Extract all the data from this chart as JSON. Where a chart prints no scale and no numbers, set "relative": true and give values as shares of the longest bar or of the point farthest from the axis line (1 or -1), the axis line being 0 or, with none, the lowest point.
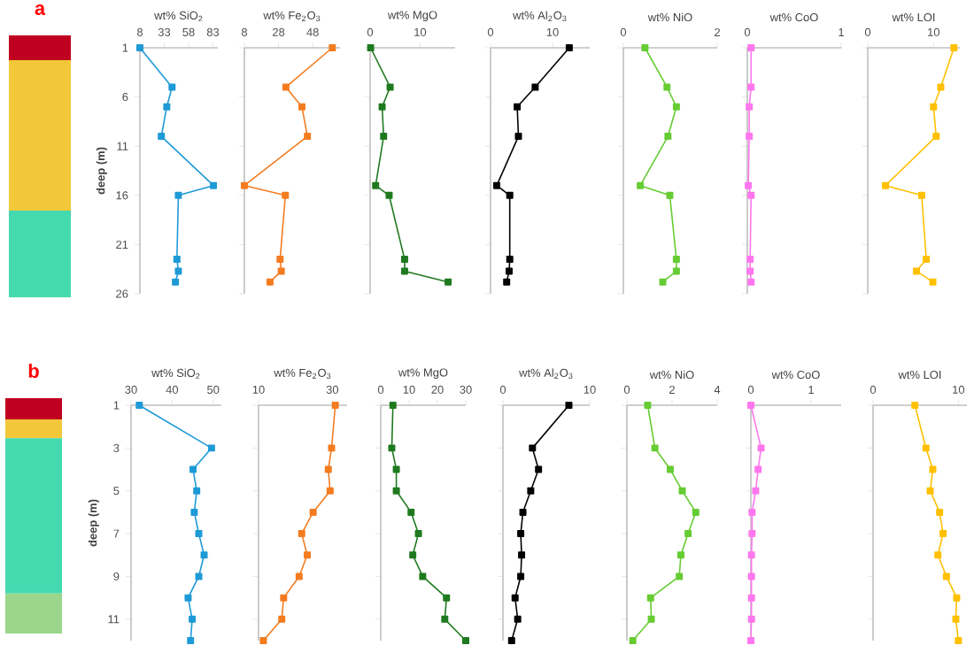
{
  "chart_data": [
    {
      "type": "bar",
      "title": "a",
      "stacked": true,
      "relative": true,
      "categories": [
        null
      ],
      "series": [
        {
          "color": "#45d9b0",
          "values": [
            0.331
          ]
        },
        {
          "color": "#f2c83a",
          "values": [
            0.574
          ]
        },
        {
          "color": "#c00020",
          "values": [
            0.095
          ]
        }
      ]
    },
    {
      "type": "line",
      "xlabel": "wt% SiO$_{2}$",
      "ylabel": "deep (m)",
      "xlim": [
        8,
        88
      ],
      "xticks": [
        8,
        33,
        58,
        83
      ],
      "ylim": [
        26,
        1
      ],
      "yticks": [
        1,
        6,
        11,
        16,
        21,
        26
      ],
      "marker": "square",
      "series": [
        {
          "color": "#1e9ad6",
          "x": [
            8,
            41,
            35.6,
            30,
            83.5,
            47.5,
            46,
            47.5,
            44.5
          ],
          "values": [
            1,
            5,
            7,
            10,
            15,
            16,
            22.5,
            23.7,
            24.8
          ]
        }
      ]
    },
    {
      "type": "line",
      "xlabel": "wt% Fe$_{2}$O$_{3}$",
      "xlim": [
        8,
        64
      ],
      "xticks": [
        8,
        28,
        48
      ],
      "ylim": [
        26,
        1
      ],
      "yticks": [
        1,
        6,
        11,
        16,
        21,
        26
      ],
      "tick_labels": "x",
      "marker": "square",
      "series": [
        {
          "color": "#f47c20",
          "x": [
            59.5,
            32.3,
            41.7,
            44.9,
            8,
            32,
            28.9,
            29.6,
            23
          ],
          "values": [
            1,
            5,
            7,
            10,
            15,
            16,
            22.5,
            23.7,
            24.8
          ]
        }
      ]
    },
    {
      "type": "line",
      "xlabel": "wt% MgO",
      "xlim": [
        0,
        17
      ],
      "xticks": [
        0,
        10
      ],
      "ylim": [
        26,
        1
      ],
      "yticks": [
        1,
        6,
        11,
        16,
        21,
        26
      ],
      "tick_labels": "x",
      "marker": "square",
      "series": [
        {
          "color": "#1f7a1f",
          "x": [
            0.1,
            4,
            2.4,
            2.7,
            1.1,
            3.8,
            6.9,
            6.9,
            15.6
          ],
          "values": [
            1,
            5,
            7,
            10,
            15,
            16,
            22.5,
            23.7,
            24.8
          ]
        }
      ]
    },
    {
      "type": "line",
      "xlabel": "wt% Al$_{2}$O$_{3}$",
      "xlim": [
        0,
        16
      ],
      "xticks": [
        0,
        10
      ],
      "ylim": [
        26,
        1
      ],
      "yticks": [
        1,
        6,
        11,
        16,
        21,
        26
      ],
      "tick_labels": "x",
      "marker": "square",
      "series": [
        {
          "color": "#000000",
          "x": [
            12.7,
            7.2,
            4.3,
            4.5,
            1,
            3.1,
            3.1,
            3,
            2.6
          ],
          "values": [
            1,
            5,
            7,
            10,
            15,
            16,
            22.5,
            23.7,
            24.8
          ]
        }
      ]
    },
    {
      "type": "line",
      "xlabel": "wt% NiO",
      "xlim": [
        0,
        2
      ],
      "xticks": [
        0,
        2
      ],
      "ylim": [
        26,
        1
      ],
      "yticks": [
        1,
        6,
        11,
        16,
        21,
        26
      ],
      "tick_labels": "x",
      "marker": "square",
      "series": [
        {
          "color": "#66cc33",
          "x": [
            0.46,
            0.93,
            1.13,
            0.95,
            0.36,
            0.99,
            1.13,
            1.13,
            0.84
          ],
          "values": [
            1,
            5,
            7,
            10,
            15,
            16,
            22.5,
            23.7,
            24.8
          ]
        }
      ]
    },
    {
      "type": "line",
      "xlabel": "wt% CoO",
      "xlim": [
        0,
        1
      ],
      "xticks": [
        0,
        1
      ],
      "ylim": [
        26,
        1
      ],
      "yticks": [
        1,
        6,
        11,
        16,
        21,
        26
      ],
      "tick_labels": "x",
      "marker": "square",
      "series": [
        {
          "color": "#ff77ee",
          "x": [
            0.04,
            0.04,
            0.02,
            0.02,
            0.01,
            0.04,
            0.03,
            0.03,
            0.04
          ],
          "values": [
            1,
            5,
            7,
            10,
            15,
            16,
            22.5,
            23.7,
            24.8
          ]
        }
      ]
    },
    {
      "type": "line",
      "xlabel": "wt% LOI",
      "xlim": [
        0,
        14
      ],
      "xticks": [
        0,
        10
      ],
      "ylim": [
        26,
        1
      ],
      "yticks": [
        1,
        6,
        11,
        16,
        21,
        26
      ],
      "tick_labels": "x",
      "marker": "square",
      "series": [
        {
          "color": "#ffc000",
          "x": [
            13.1,
            11.1,
            10,
            10.4,
            2.7,
            8.2,
            8.9,
            7.4,
            9.9
          ],
          "values": [
            1,
            5,
            7,
            10,
            15,
            16,
            22.5,
            23.7,
            24.8
          ]
        }
      ]
    },
    {
      "type": "bar",
      "title": "b",
      "stacked": true,
      "relative": true,
      "categories": [
        null
      ],
      "series": [
        {
          "color": "#9bd68c",
          "values": [
            0.17
          ]
        },
        {
          "color": "#45d9b0",
          "values": [
            0.66
          ]
        },
        {
          "color": "#f2c83a",
          "values": [
            0.08
          ]
        },
        {
          "color": "#c00020",
          "values": [
            0.09
          ]
        }
      ]
    },
    {
      "type": "line",
      "xlabel": "wt% SiO$_{2}$",
      "ylabel": "deep (m)",
      "xlim": [
        30,
        52
      ],
      "xticks": [
        30,
        40,
        50
      ],
      "ylim": [
        12,
        1
      ],
      "yticks": [
        1,
        3,
        5,
        7,
        9,
        11
      ],
      "marker": "square",
      "series": [
        {
          "color": "#1e9ad6",
          "x": [
            32,
            49.6,
            45.1,
            46,
            45.4,
            46.5,
            47.8,
            46.5,
            43.9,
            44.9,
            44.5
          ],
          "values": [
            1,
            3,
            4,
            5,
            6,
            7,
            8,
            9,
            10,
            11,
            12
          ]
        }
      ]
    },
    {
      "type": "line",
      "xlabel": "wt% Fe$_{2}$O$_{3}$",
      "xlim": [
        10,
        34
      ],
      "xticks": [
        10,
        30
      ],
      "ylim": [
        12,
        1
      ],
      "yticks": [
        1,
        3,
        5,
        7,
        9,
        11
      ],
      "tick_labels": "x",
      "marker": "square",
      "series": [
        {
          "color": "#f47c20",
          "x": [
            30.8,
            29.8,
            28.9,
            29.4,
            24.8,
            21.7,
            23.2,
            21,
            16.8,
            16.3,
            11.3
          ],
          "values": [
            1,
            3,
            4,
            5,
            6,
            7,
            8,
            9,
            10,
            11,
            12
          ]
        }
      ]
    },
    {
      "type": "line",
      "xlabel": "wt% MgO",
      "xlim": [
        0,
        30
      ],
      "xticks": [
        0,
        10,
        20,
        30
      ],
      "ylim": [
        12,
        1
      ],
      "yticks": [
        1,
        3,
        5,
        7,
        9,
        11
      ],
      "tick_labels": "x",
      "marker": "square",
      "series": [
        {
          "color": "#1f7a1f",
          "x": [
            4.3,
            3.9,
            5.5,
            5.5,
            10.7,
            13.3,
            11.3,
            14.8,
            23.2,
            22.6,
            30
          ],
          "values": [
            1,
            3,
            4,
            5,
            6,
            7,
            8,
            9,
            10,
            11,
            12
          ]
        }
      ]
    },
    {
      "type": "line",
      "xlabel": "wt% Al$_{2}$O$_{3}$",
      "xlim": [
        0,
        10
      ],
      "xticks": [
        0,
        10
      ],
      "ylim": [
        12,
        1
      ],
      "yticks": [
        1,
        3,
        5,
        7,
        9,
        11
      ],
      "tick_labels": "x",
      "marker": "square",
      "series": [
        {
          "color": "#000000",
          "x": [
            7.6,
            3.4,
            4.1,
            3.2,
            2.3,
            2.05,
            2.15,
            2.05,
            1.4,
            1.7,
            1
          ],
          "values": [
            1,
            3,
            4,
            5,
            6,
            7,
            8,
            9,
            10,
            11,
            12
          ]
        }
      ]
    },
    {
      "type": "line",
      "xlabel": "wt% NiO",
      "xlim": [
        0,
        4
      ],
      "xticks": [
        0,
        2,
        4
      ],
      "ylim": [
        12,
        1
      ],
      "yticks": [
        1,
        3,
        5,
        7,
        9,
        11
      ],
      "tick_labels": "x",
      "marker": "square",
      "series": [
        {
          "color": "#66cc33",
          "x": [
            0.92,
            1.24,
            1.92,
            2.45,
            3.05,
            2.71,
            2.39,
            2.32,
            1.05,
            1.08,
            0.26
          ],
          "values": [
            1,
            3,
            4,
            5,
            6,
            7,
            8,
            9,
            10,
            11,
            12
          ]
        }
      ]
    },
    {
      "type": "line",
      "xlabel": "wt% CoO",
      "xlim": [
        0,
        1.5
      ],
      "xticks": [
        0,
        1
      ],
      "ylim": [
        12,
        1
      ],
      "yticks": [
        1,
        3,
        5,
        7,
        9,
        11
      ],
      "tick_labels": "x",
      "marker": "square",
      "series": [
        {
          "color": "#ff77ee",
          "x": [
            0,
            0.17,
            0.12,
            0.08,
            0.02,
            0.02,
            0.01,
            0.01,
            0.01,
            0.01,
            0
          ],
          "values": [
            1,
            3,
            4,
            5,
            6,
            7,
            8,
            9,
            10,
            11,
            12
          ]
        }
      ]
    },
    {
      "type": "line",
      "xlabel": "wt% LOI",
      "xlim": [
        0,
        11
      ],
      "xticks": [
        0,
        10
      ],
      "ylim": [
        12,
        1
      ],
      "yticks": [
        1,
        3,
        5,
        7,
        9,
        11
      ],
      "tick_labels": "x",
      "marker": "square",
      "series": [
        {
          "color": "#ffc000",
          "x": [
            4.9,
            6.2,
            7,
            6.7,
            7.8,
            8.2,
            7.6,
            8.6,
            9.8,
            9.7,
            10
          ],
          "values": [
            1,
            3,
            4,
            5,
            6,
            7,
            8,
            9,
            10,
            11,
            12
          ]
        }
      ]
    }
  ]
}
